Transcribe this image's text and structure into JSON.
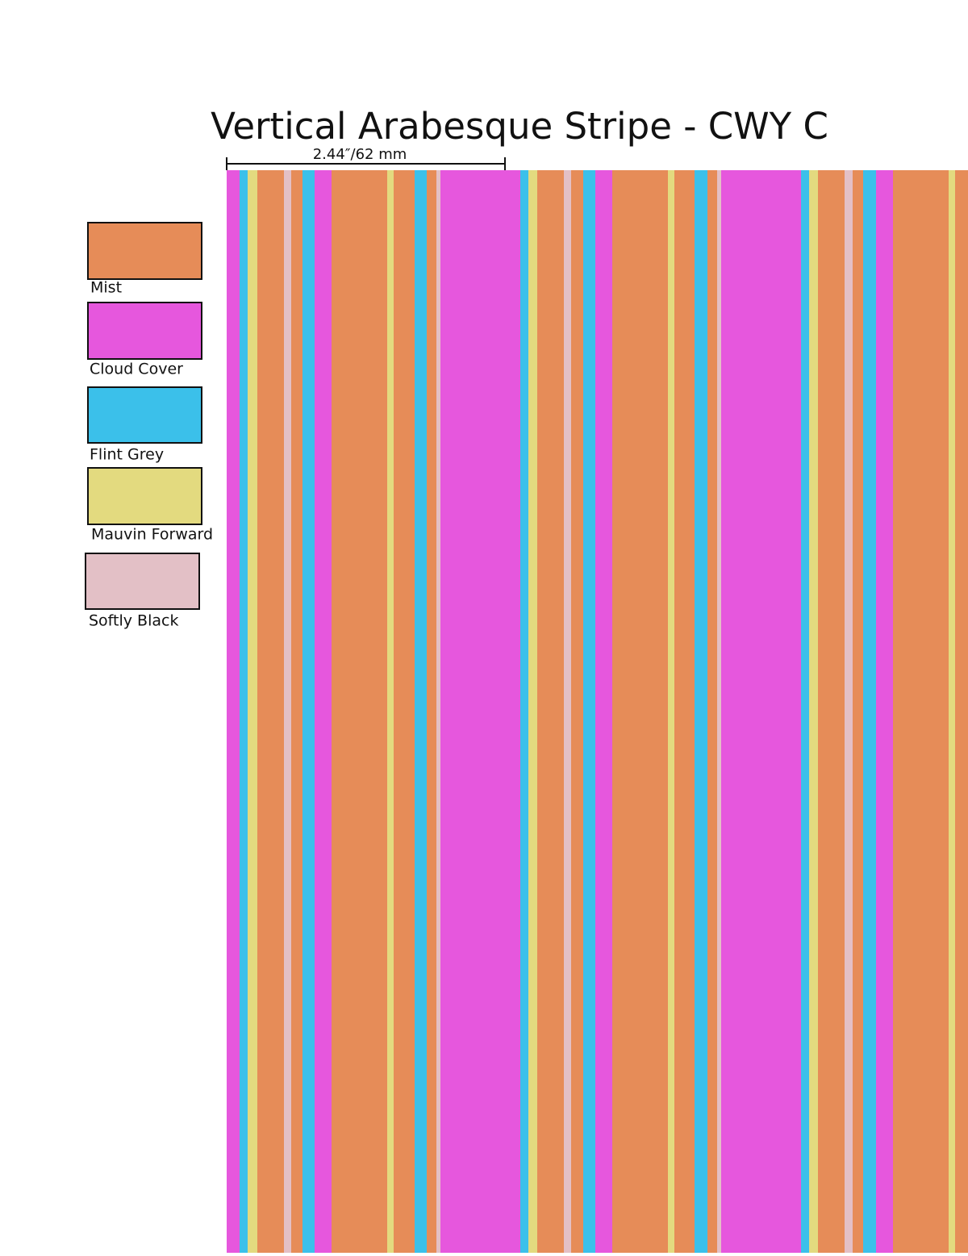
{
  "header": {
    "title": "Vertical Arabesque Stripe - CWY C",
    "scale_label": "2.44″/62 mm"
  },
  "legend": [
    {
      "label": "Mist",
      "color": "#e68c58"
    },
    {
      "label": "Cloud Cover",
      "color": "#e657dd"
    },
    {
      "label": "Flint Grey",
      "color": "#3bc0ea"
    },
    {
      "label": "Mauvin Forward",
      "color": "#e3da7f"
    },
    {
      "label": "Softly Black",
      "color": "#e3c0c6"
    }
  ]
}
